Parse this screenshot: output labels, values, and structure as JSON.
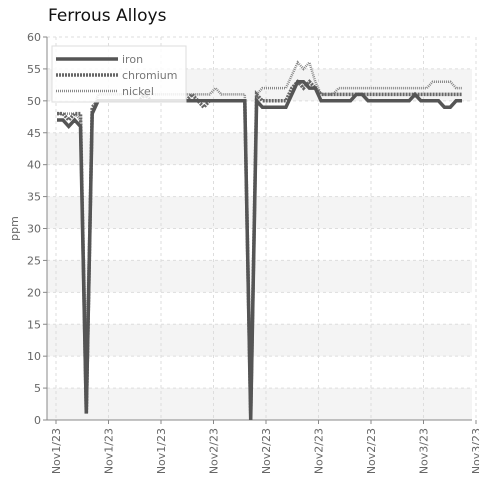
{
  "chart_data": {
    "type": "line",
    "title": "Ferrous Alloys",
    "xlabel": "",
    "ylabel": "ppm",
    "ylim": [
      0,
      60
    ],
    "y_ticks": [
      0,
      5,
      10,
      15,
      20,
      25,
      30,
      35,
      40,
      45,
      50,
      55,
      60
    ],
    "x_tick_labels": [
      "Nov1/23",
      "Nov1/23",
      "Nov1/23",
      "Nov2/23",
      "Nov2/23",
      "Nov2/23",
      "Nov2/23",
      "Nov3/23",
      "Nov3/23"
    ],
    "grid": true,
    "legend_position": "top-left",
    "series": [
      {
        "name": "iron",
        "color": "#555555",
        "style": "solid",
        "values": [
          47,
          47,
          46,
          47,
          46,
          1,
          48,
          50,
          50,
          50,
          50,
          50,
          50,
          50,
          50,
          50,
          50,
          50,
          50,
          50,
          50,
          50,
          50,
          50,
          50,
          50,
          50,
          50,
          50,
          50,
          50,
          50,
          50,
          0,
          50,
          49,
          49,
          49,
          49,
          49,
          51,
          53,
          53,
          52,
          52,
          50,
          50,
          50,
          50,
          50,
          50,
          51,
          51,
          50,
          50,
          50,
          50,
          50,
          50,
          50,
          50,
          51,
          50,
          50,
          50,
          50,
          49,
          49,
          50,
          50
        ]
      },
      {
        "name": "chromium",
        "color": "#666666",
        "style": "dashed",
        "values": [
          48,
          48,
          47,
          48,
          48,
          1,
          49,
          50,
          50,
          50,
          50,
          50,
          50,
          50,
          50,
          51,
          50,
          50,
          50,
          50,
          50,
          50,
          50,
          51,
          50,
          49,
          50,
          50,
          50,
          50,
          50,
          50,
          50,
          1,
          51,
          50,
          50,
          50,
          50,
          50,
          52,
          53,
          52,
          53,
          52,
          51,
          51,
          51,
          51,
          51,
          51,
          51,
          51,
          51,
          51,
          51,
          51,
          51,
          51,
          51,
          51,
          51,
          51,
          51,
          51,
          51,
          51,
          51,
          51,
          51
        ]
      },
      {
        "name": "nickel",
        "color": "#888888",
        "style": "dotted",
        "values": [
          48,
          48,
          48,
          48,
          47,
          10,
          48,
          51,
          51,
          51,
          51,
          51,
          51,
          51,
          51,
          51,
          51,
          51,
          51,
          51,
          51,
          51,
          51,
          51,
          51,
          51,
          51,
          52,
          51,
          51,
          51,
          51,
          51,
          4,
          51,
          52,
          52,
          52,
          52,
          52,
          54,
          56,
          55,
          56,
          53,
          51,
          51,
          51,
          52,
          52,
          52,
          52,
          52,
          52,
          52,
          52,
          52,
          52,
          52,
          52,
          52,
          52,
          52,
          52,
          53,
          53,
          53,
          53,
          52,
          52
        ]
      }
    ]
  }
}
